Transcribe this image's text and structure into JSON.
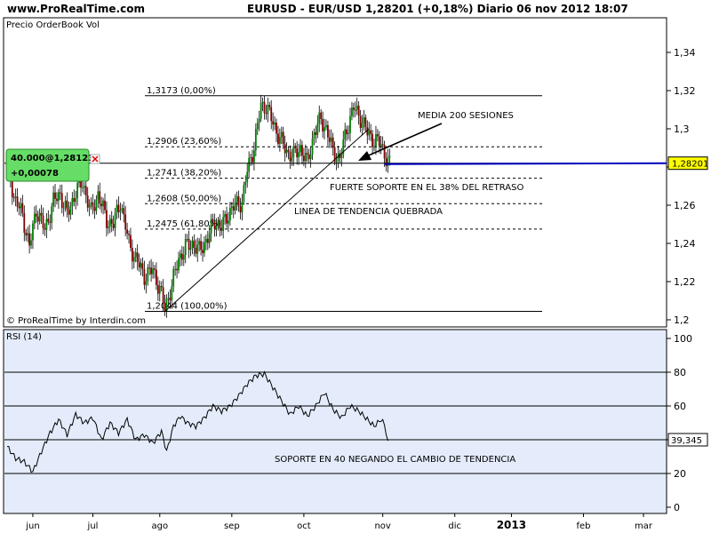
{
  "header": {
    "site": "www.ProRealTime.com",
    "title": "EURUSD - EUR/USD     1,28201 (+0,18%)   Diario  06 nov 2012 18:07"
  },
  "price_panel": {
    "label": "Precio OrderBook Vol",
    "credit": "© ProRealTime by Interdin.com",
    "orderbook_box": {
      "line1": "40.000@1,28123",
      "line2": "+0,00078"
    },
    "current_price_label": "1,28201",
    "colors": {
      "up": "#008000",
      "down": "#800000",
      "ma": "#0000c0",
      "price_line": "#000000",
      "box_bg": "#66dd66"
    }
  },
  "rsi_panel": {
    "label": "RSI (14)",
    "value_label": "39,345"
  },
  "annotations": {
    "ma200": "MEDIA 200 SESIONES",
    "support": "FUERTE SOPORTE EN EL 38% DEL RETRASO",
    "trendline": "LINEA DE TENDENCIA QUEBRADA",
    "rsi_support": "SOPORTE EN 40 NEGANDO EL CAMBIO DE TENDENCIA"
  },
  "chart_data": [
    {
      "type": "candlestick",
      "ylim": [
        1.2,
        1.355
      ],
      "y_ticks": [
        1.2,
        1.22,
        1.24,
        1.26,
        1.28,
        1.3,
        1.32,
        1.34
      ],
      "y_tick_labels": [
        "1,2",
        "1,22",
        "1,24",
        "1,26",
        "",
        "1,3",
        "1,32",
        "1,34"
      ],
      "x_tick_labels": [
        "jun",
        "jul",
        "ago",
        "sep",
        "oct",
        "nov",
        "dic",
        "2013",
        "feb",
        "mar"
      ],
      "close_path": [
        {
          "d": 0,
          "v": 1.285
        },
        {
          "d": 4,
          "v": 1.264
        },
        {
          "d": 9,
          "v": 1.255
        },
        {
          "d": 13,
          "v": 1.238
        },
        {
          "d": 17,
          "v": 1.258
        },
        {
          "d": 22,
          "v": 1.247
        },
        {
          "d": 27,
          "v": 1.262
        },
        {
          "d": 31,
          "v": 1.266
        },
        {
          "d": 35,
          "v": 1.255
        },
        {
          "d": 40,
          "v": 1.267
        },
        {
          "d": 44,
          "v": 1.272
        },
        {
          "d": 49,
          "v": 1.256
        },
        {
          "d": 53,
          "v": 1.266
        },
        {
          "d": 58,
          "v": 1.252
        },
        {
          "d": 62,
          "v": 1.25
        },
        {
          "d": 66,
          "v": 1.262
        },
        {
          "d": 71,
          "v": 1.24
        },
        {
          "d": 75,
          "v": 1.232
        },
        {
          "d": 80,
          "v": 1.223
        },
        {
          "d": 85,
          "v": 1.226
        },
        {
          "d": 89,
          "v": 1.216
        },
        {
          "d": 92,
          "v": 1.206
        },
        {
          "d": 96,
          "v": 1.218
        },
        {
          "d": 100,
          "v": 1.232
        },
        {
          "d": 104,
          "v": 1.238
        },
        {
          "d": 108,
          "v": 1.24
        },
        {
          "d": 112,
          "v": 1.236
        },
        {
          "d": 117,
          "v": 1.243
        },
        {
          "d": 121,
          "v": 1.252
        },
        {
          "d": 125,
          "v": 1.248
        },
        {
          "d": 129,
          "v": 1.256
        },
        {
          "d": 133,
          "v": 1.26
        },
        {
          "d": 137,
          "v": 1.262
        },
        {
          "d": 140,
          "v": 1.278
        },
        {
          "d": 144,
          "v": 1.291
        },
        {
          "d": 148,
          "v": 1.312
        },
        {
          "d": 151,
          "v": 1.312
        },
        {
          "d": 155,
          "v": 1.303
        },
        {
          "d": 159,
          "v": 1.295
        },
        {
          "d": 163,
          "v": 1.288
        },
        {
          "d": 167,
          "v": 1.286
        },
        {
          "d": 171,
          "v": 1.29
        },
        {
          "d": 175,
          "v": 1.282
        },
        {
          "d": 179,
          "v": 1.298
        },
        {
          "d": 183,
          "v": 1.305
        },
        {
          "d": 186,
          "v": 1.3
        },
        {
          "d": 190,
          "v": 1.288
        },
        {
          "d": 194,
          "v": 1.284
        },
        {
          "d": 198,
          "v": 1.3
        },
        {
          "d": 202,
          "v": 1.311
        },
        {
          "d": 206,
          "v": 1.306
        },
        {
          "d": 210,
          "v": 1.298
        },
        {
          "d": 214,
          "v": 1.294
        },
        {
          "d": 218,
          "v": 1.292
        },
        {
          "d": 220,
          "v": 1.287
        },
        {
          "d": 223,
          "v": 1.281
        }
      ],
      "ma200": {
        "from": {
          "d": 220,
          "v": 1.2815
        },
        "to": {
          "d": 300,
          "v": 1.282
        }
      },
      "current_price": 1.282,
      "fibonacci": [
        {
          "value": 1.3173,
          "label": "1,3173 (0,00%)",
          "style": "solid"
        },
        {
          "value": 1.2906,
          "label": "1,2906 (23,60%)",
          "style": "dashed"
        },
        {
          "value": 1.2741,
          "label": "1,2741 (38,20%)",
          "style": "dashed"
        },
        {
          "value": 1.2608,
          "label": "1,2608 (50,00%)",
          "style": "dashed"
        },
        {
          "value": 1.2475,
          "label": "1,2475 (61,80%)",
          "style": "dashed"
        },
        {
          "value": 1.2044,
          "label": "1,2044 (100,00%)",
          "style": "solid"
        }
      ],
      "trendline": {
        "from": {
          "d": 92,
          "v": 1.2044
        },
        "to": {
          "d": 211,
          "v": 1.3
        }
      }
    },
    {
      "type": "line",
      "name": "RSI (14)",
      "ylim": [
        -5,
        102
      ],
      "y_ticks": [
        0,
        20,
        40,
        60,
        80,
        100
      ],
      "y_tick_labels": [
        "0",
        "20",
        "40",
        "60",
        "80",
        "100"
      ],
      "x_tick_labels": [
        "jun",
        "jul",
        "ago",
        "sep",
        "oct",
        "nov",
        "dic",
        "2013",
        "feb",
        "mar"
      ],
      "points": [
        {
          "d": 0,
          "v": 36
        },
        {
          "d": 5,
          "v": 29
        },
        {
          "d": 10,
          "v": 27
        },
        {
          "d": 15,
          "v": 21
        },
        {
          "d": 20,
          "v": 33
        },
        {
          "d": 25,
          "v": 44
        },
        {
          "d": 30,
          "v": 52
        },
        {
          "d": 35,
          "v": 43
        },
        {
          "d": 40,
          "v": 55
        },
        {
          "d": 45,
          "v": 50
        },
        {
          "d": 50,
          "v": 53
        },
        {
          "d": 55,
          "v": 40
        },
        {
          "d": 60,
          "v": 50
        },
        {
          "d": 65,
          "v": 44
        },
        {
          "d": 70,
          "v": 52
        },
        {
          "d": 75,
          "v": 40
        },
        {
          "d": 80,
          "v": 43
        },
        {
          "d": 85,
          "v": 38
        },
        {
          "d": 90,
          "v": 45
        },
        {
          "d": 93,
          "v": 33
        },
        {
          "d": 97,
          "v": 48
        },
        {
          "d": 101,
          "v": 54
        },
        {
          "d": 105,
          "v": 50
        },
        {
          "d": 110,
          "v": 48
        },
        {
          "d": 115,
          "v": 53
        },
        {
          "d": 120,
          "v": 60
        },
        {
          "d": 125,
          "v": 57
        },
        {
          "d": 130,
          "v": 60
        },
        {
          "d": 135,
          "v": 66
        },
        {
          "d": 140,
          "v": 73
        },
        {
          "d": 145,
          "v": 78
        },
        {
          "d": 150,
          "v": 79
        },
        {
          "d": 155,
          "v": 71
        },
        {
          "d": 160,
          "v": 63
        },
        {
          "d": 165,
          "v": 55
        },
        {
          "d": 170,
          "v": 60
        },
        {
          "d": 175,
          "v": 54
        },
        {
          "d": 180,
          "v": 60
        },
        {
          "d": 185,
          "v": 68
        },
        {
          "d": 190,
          "v": 58
        },
        {
          "d": 195,
          "v": 53
        },
        {
          "d": 200,
          "v": 60
        },
        {
          "d": 205,
          "v": 57
        },
        {
          "d": 210,
          "v": 52
        },
        {
          "d": 214,
          "v": 48
        },
        {
          "d": 218,
          "v": 52
        },
        {
          "d": 220,
          "v": 49
        },
        {
          "d": 222,
          "v": 39.345
        }
      ],
      "reference_lines": [
        20,
        40,
        60,
        80
      ]
    }
  ]
}
